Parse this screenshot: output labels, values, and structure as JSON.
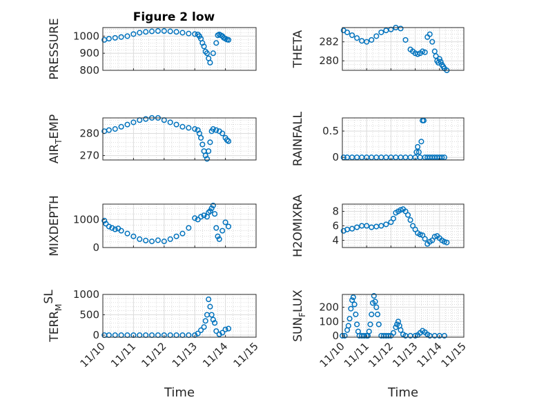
{
  "figure": {
    "title": "Figure 2 low",
    "marker_color": "#0072BD"
  },
  "chart_data": [
    {
      "type": "scatter",
      "panel": "PRESSURE",
      "title": "Figure 2 low",
      "xlabel": "",
      "ylabel": "PRESSURE",
      "xlim": [
        0,
        5
      ],
      "xticks": [
        0,
        1,
        2,
        3,
        4,
        5
      ],
      "xticklabels": [],
      "ylim": [
        800,
        1050
      ],
      "yticks": [
        800,
        900,
        1000
      ],
      "yticklabels": [
        "800",
        "900",
        "1000"
      ],
      "grid": true,
      "minor_grid": true,
      "series": [
        {
          "x": [
            0.05,
            0.2,
            0.4,
            0.6,
            0.8,
            1.0,
            1.2,
            1.4,
            1.6,
            1.8,
            2.0,
            2.2,
            2.4,
            2.6,
            2.8,
            3.0,
            3.1,
            3.15,
            3.2,
            3.25,
            3.3,
            3.35,
            3.4,
            3.45,
            3.5,
            3.6,
            3.7,
            3.75,
            3.8,
            3.85,
            3.9,
            3.95,
            4.0,
            4.05,
            4.1
          ],
          "y": [
            978,
            985,
            990,
            995,
            1000,
            1012,
            1020,
            1025,
            1028,
            1030,
            1030,
            1028,
            1025,
            1020,
            1015,
            1012,
            1010,
            1000,
            985,
            960,
            940,
            910,
            900,
            870,
            845,
            900,
            960,
            1005,
            1010,
            1005,
            1000,
            990,
            985,
            980,
            978
          ]
        }
      ]
    },
    {
      "type": "scatter",
      "panel": "THETA",
      "xlabel": "",
      "ylabel": "THETA",
      "xlim": [
        0,
        5
      ],
      "xticks": [
        0,
        1,
        2,
        3,
        4,
        5
      ],
      "xticklabels": [],
      "ylim": [
        279.0,
        283.5
      ],
      "yticks": [
        280,
        282
      ],
      "yticklabels": [
        "280",
        "282"
      ],
      "grid": true,
      "minor_grid": true,
      "series": [
        {
          "x": [
            0.05,
            0.2,
            0.4,
            0.6,
            0.8,
            1.0,
            1.2,
            1.4,
            1.6,
            1.8,
            2.0,
            2.2,
            2.4,
            2.6,
            2.8,
            2.9,
            3.0,
            3.1,
            3.2,
            3.3,
            3.4,
            3.5,
            3.6,
            3.7,
            3.8,
            3.85,
            3.9,
            3.95,
            4.0,
            4.05,
            4.1,
            4.15,
            4.2,
            4.3
          ],
          "y": [
            283.2,
            283.0,
            282.7,
            282.4,
            282.1,
            282.0,
            282.2,
            282.6,
            283.0,
            283.2,
            283.3,
            283.5,
            283.4,
            282.2,
            281.2,
            281.0,
            280.8,
            280.7,
            280.8,
            281.0,
            280.9,
            282.5,
            282.8,
            282.0,
            281.0,
            280.5,
            280.0,
            279.8,
            280.2,
            279.9,
            279.6,
            279.4,
            279.2,
            279.0
          ]
        }
      ]
    },
    {
      "type": "scatter",
      "panel": "AIR_TEMP",
      "xlabel": "",
      "ylabel_main": "AIR",
      "ylabel_sub": "T",
      "ylabel_rest": "EMP",
      "xlim": [
        0,
        5
      ],
      "xticks": [
        0,
        1,
        2,
        3,
        4,
        5
      ],
      "xticklabels": [],
      "ylim": [
        268,
        287
      ],
      "yticks": [
        270,
        280
      ],
      "yticklabels": [
        "270",
        "280"
      ],
      "grid": true,
      "minor_grid": true,
      "series": [
        {
          "x": [
            0.05,
            0.2,
            0.4,
            0.6,
            0.8,
            1.0,
            1.2,
            1.4,
            1.6,
            1.8,
            2.0,
            2.2,
            2.4,
            2.6,
            2.8,
            3.0,
            3.1,
            3.15,
            3.2,
            3.25,
            3.3,
            3.35,
            3.4,
            3.45,
            3.5,
            3.55,
            3.6,
            3.7,
            3.8,
            3.9,
            4.0,
            4.05,
            4.1
          ],
          "y": [
            281,
            281.5,
            282,
            283,
            284,
            285,
            286,
            286.5,
            287,
            287,
            286,
            285,
            284,
            283,
            282.5,
            282,
            281.5,
            280,
            278,
            275,
            272,
            270,
            268.5,
            272,
            276,
            281,
            282,
            281.5,
            281,
            280,
            278,
            277,
            276.5
          ]
        }
      ]
    },
    {
      "type": "scatter",
      "panel": "RAINFALL",
      "xlabel": "",
      "ylabel": "RAINFALL",
      "xlim": [
        0,
        5
      ],
      "xticks": [
        0,
        1,
        2,
        3,
        4,
        5
      ],
      "xticklabels": [],
      "ylim": [
        -0.05,
        0.75
      ],
      "yticks": [
        0,
        0.5
      ],
      "yticklabels": [
        "0",
        "0.5"
      ],
      "grid": true,
      "minor_grid": true,
      "series": [
        {
          "x": [
            0.05,
            0.2,
            0.4,
            0.6,
            0.8,
            1.0,
            1.2,
            1.4,
            1.6,
            1.8,
            2.0,
            2.2,
            2.4,
            2.6,
            2.8,
            3.0,
            3.05,
            3.1,
            3.15,
            3.2,
            3.25,
            3.3,
            3.35,
            3.4,
            3.5,
            3.6,
            3.7,
            3.8,
            3.9,
            4.0,
            4.1,
            4.2
          ],
          "y": [
            0,
            0,
            0,
            0,
            0,
            0,
            0,
            0,
            0,
            0,
            0,
            0,
            0,
            0,
            0,
            0,
            0.1,
            0.2,
            0.1,
            0,
            0.3,
            0.7,
            0.7,
            0,
            0,
            0,
            0,
            0,
            0,
            0,
            0,
            0
          ]
        }
      ]
    },
    {
      "type": "scatter",
      "panel": "MIXDEPTH",
      "xlabel": "",
      "ylabel": "MIXDEPTH",
      "xlim": [
        0,
        5
      ],
      "xticks": [
        0,
        1,
        2,
        3,
        4,
        5
      ],
      "xticklabels": [],
      "ylim": [
        0,
        1550
      ],
      "yticks": [
        0,
        1000
      ],
      "yticklabels": [
        "0",
        "1000"
      ],
      "grid": true,
      "minor_grid": true,
      "series": [
        {
          "x": [
            0.05,
            0.1,
            0.2,
            0.3,
            0.4,
            0.5,
            0.6,
            0.8,
            1.0,
            1.2,
            1.4,
            1.6,
            1.8,
            2.0,
            2.2,
            2.4,
            2.6,
            2.8,
            3.0,
            3.1,
            3.2,
            3.3,
            3.4,
            3.45,
            3.5,
            3.55,
            3.6,
            3.65,
            3.7,
            3.75,
            3.8,
            3.9,
            4.0,
            4.1
          ],
          "y": [
            960,
            850,
            750,
            700,
            650,
            680,
            600,
            500,
            400,
            300,
            250,
            220,
            260,
            220,
            300,
            400,
            500,
            700,
            1050,
            1000,
            1100,
            1150,
            1100,
            1250,
            1300,
            1400,
            1500,
            1200,
            700,
            400,
            300,
            600,
            900,
            750
          ]
        }
      ]
    },
    {
      "type": "scatter",
      "panel": "H2OMIXRA",
      "xlabel": "",
      "ylabel": "H2OMIXRA",
      "xlim": [
        0,
        5
      ],
      "xticks": [
        0,
        1,
        2,
        3,
        4,
        5
      ],
      "xticklabels": [],
      "ylim": [
        3,
        9
      ],
      "yticks": [
        4,
        6,
        8
      ],
      "yticklabels": [
        "4",
        "6",
        "8"
      ],
      "grid": true,
      "minor_grid": true,
      "series": [
        {
          "x": [
            0.05,
            0.2,
            0.4,
            0.6,
            0.8,
            1.0,
            1.2,
            1.4,
            1.6,
            1.8,
            2.0,
            2.1,
            2.2,
            2.3,
            2.4,
            2.5,
            2.6,
            2.7,
            2.8,
            2.9,
            3.0,
            3.1,
            3.2,
            3.3,
            3.4,
            3.5,
            3.6,
            3.7,
            3.8,
            3.9,
            4.0,
            4.1,
            4.2,
            4.3
          ],
          "y": [
            5.3,
            5.5,
            5.6,
            5.8,
            6.0,
            6.0,
            5.8,
            5.9,
            6.0,
            6.2,
            6.5,
            7.0,
            7.8,
            8.0,
            8.2,
            8.3,
            8.0,
            7.5,
            6.8,
            6.0,
            5.5,
            5.0,
            4.8,
            4.7,
            4.2,
            3.5,
            3.8,
            4.0,
            4.5,
            4.6,
            4.3,
            4.0,
            3.8,
            3.7
          ]
        }
      ]
    },
    {
      "type": "scatter",
      "panel": "TERR_MSL",
      "xlabel": "Time",
      "ylabel_main": "TERR",
      "ylabel_sub": "M",
      "ylabel_sup": "SL",
      "xlim": [
        0,
        5
      ],
      "xticks": [
        0,
        1,
        2,
        3,
        4,
        5
      ],
      "xticklabels": [
        "11/10",
        "11/11",
        "11/12",
        "11/13",
        "11/14",
        "11/15"
      ],
      "ylim": [
        -50,
        1000
      ],
      "yticks": [
        0,
        500,
        1000
      ],
      "yticklabels": [
        "0",
        "500",
        "1000"
      ],
      "grid": true,
      "minor_grid": true,
      "series": [
        {
          "x": [
            0.05,
            0.2,
            0.4,
            0.6,
            0.8,
            1.0,
            1.2,
            1.4,
            1.6,
            1.8,
            2.0,
            2.2,
            2.4,
            2.6,
            2.8,
            3.0,
            3.1,
            3.2,
            3.3,
            3.35,
            3.4,
            3.45,
            3.5,
            3.55,
            3.6,
            3.65,
            3.7,
            3.8,
            3.9,
            4.0,
            4.1
          ],
          "y": [
            0,
            0,
            0,
            0,
            0,
            0,
            0,
            0,
            0,
            0,
            0,
            0,
            0,
            0,
            0,
            0,
            40,
            120,
            200,
            350,
            500,
            880,
            700,
            500,
            380,
            300,
            100,
            20,
            60,
            140,
            160
          ]
        }
      ]
    },
    {
      "type": "scatter",
      "panel": "SUN_FLUX",
      "xlabel": "Time",
      "ylabel_main": "SUN",
      "ylabel_sub": "F",
      "ylabel_rest": "LUX",
      "xlim": [
        0,
        5
      ],
      "xticks": [
        0,
        1,
        2,
        3,
        4,
        5
      ],
      "xticklabels": [
        "11/10",
        "11/11",
        "11/12",
        "11/13",
        "11/14",
        "11/15"
      ],
      "ylim": [
        -10,
        290
      ],
      "yticks": [
        0,
        100,
        200
      ],
      "yticklabels": [
        "0",
        "100",
        "200"
      ],
      "grid": true,
      "minor_grid": true,
      "series": [
        {
          "x": [
            0.0,
            0.1,
            0.2,
            0.25,
            0.3,
            0.35,
            0.4,
            0.45,
            0.5,
            0.55,
            0.6,
            0.65,
            0.7,
            0.8,
            0.9,
            1.0,
            1.05,
            1.1,
            1.15,
            1.2,
            1.25,
            1.3,
            1.35,
            1.4,
            1.45,
            1.5,
            1.6,
            1.7,
            1.8,
            1.9,
            2.0,
            2.1,
            2.2,
            2.25,
            2.3,
            2.35,
            2.4,
            2.5,
            2.6,
            2.8,
            3.0,
            3.1,
            3.2,
            3.3,
            3.4,
            3.5,
            3.6,
            3.8,
            4.0,
            4.2
          ],
          "y": [
            0,
            0,
            40,
            70,
            120,
            190,
            250,
            270,
            220,
            150,
            80,
            30,
            0,
            0,
            0,
            0,
            0,
            30,
            80,
            150,
            230,
            280,
            240,
            200,
            150,
            80,
            0,
            0,
            0,
            0,
            0,
            20,
            60,
            80,
            100,
            70,
            40,
            10,
            0,
            0,
            0,
            5,
            20,
            35,
            25,
            10,
            0,
            0,
            0,
            0
          ]
        }
      ]
    }
  ]
}
